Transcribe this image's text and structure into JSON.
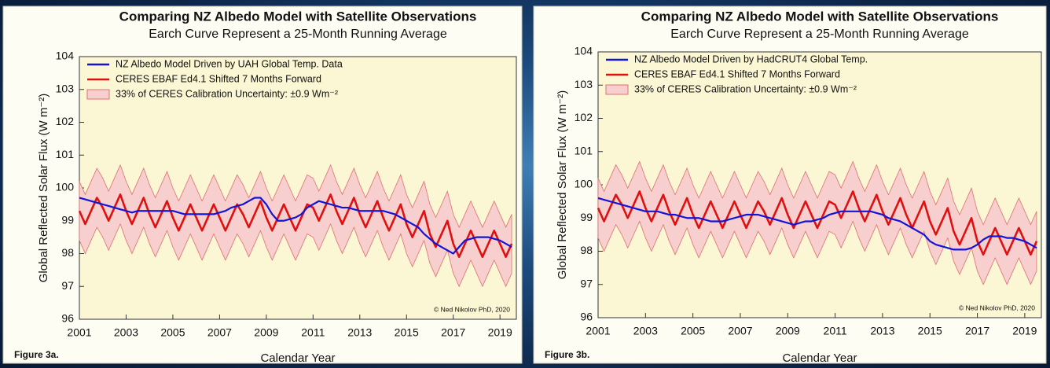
{
  "chart_data": [
    {
      "type": "line",
      "title": "Comparing NZ Albedo Model with Satellite Observations",
      "subtitle": "Earch Curve Represent a 25-Month Running Average",
      "x_label": "Calendar Year",
      "y_label": "Global Reflected Solar Flux (W m⁻²)",
      "figure_label": "Figure 3a.",
      "credit": "© Ned Nikolov PhD, 2020",
      "xlim": [
        2001,
        2019.7
      ],
      "xticks": [
        2001,
        2003,
        2005,
        2007,
        2009,
        2011,
        2013,
        2015,
        2017,
        2019
      ],
      "ylim": [
        96,
        104
      ],
      "yticks": [
        96,
        97,
        98,
        99,
        100,
        101,
        102,
        103,
        104
      ],
      "x": [
        2001,
        2001.25,
        2001.5,
        2001.75,
        2002,
        2002.25,
        2002.5,
        2002.75,
        2003,
        2003.25,
        2003.5,
        2003.75,
        2004,
        2004.25,
        2004.5,
        2004.75,
        2005,
        2005.25,
        2005.5,
        2005.75,
        2006,
        2006.25,
        2006.5,
        2006.75,
        2007,
        2007.25,
        2007.5,
        2007.75,
        2008,
        2008.25,
        2008.5,
        2008.75,
        2009,
        2009.25,
        2009.5,
        2009.75,
        2010,
        2010.25,
        2010.5,
        2010.75,
        2011,
        2011.25,
        2011.5,
        2011.75,
        2012,
        2012.25,
        2012.5,
        2012.75,
        2013,
        2013.25,
        2013.5,
        2013.75,
        2014,
        2014.25,
        2014.5,
        2014.75,
        2015,
        2015.25,
        2015.5,
        2015.75,
        2016,
        2016.25,
        2016.5,
        2016.75,
        2017,
        2017.25,
        2017.5,
        2017.75,
        2018,
        2018.25,
        2018.5,
        2018.75,
        2019,
        2019.25,
        2019.5
      ],
      "series": [
        {
          "name": "NZ Albedo Model Driven by UAH Global Temp. Data",
          "color": "#1414d6",
          "values": [
            99.7,
            99.65,
            99.6,
            99.55,
            99.5,
            99.45,
            99.4,
            99.35,
            99.3,
            99.25,
            99.3,
            99.3,
            99.3,
            99.3,
            99.3,
            99.3,
            99.3,
            99.25,
            99.2,
            99.2,
            99.2,
            99.2,
            99.2,
            99.2,
            99.25,
            99.3,
            99.4,
            99.45,
            99.5,
            99.6,
            99.7,
            99.7,
            99.5,
            99.2,
            99.0,
            99.0,
            99.05,
            99.1,
            99.2,
            99.4,
            99.5,
            99.6,
            99.55,
            99.5,
            99.45,
            99.4,
            99.4,
            99.35,
            99.3,
            99.3,
            99.3,
            99.3,
            99.3,
            99.25,
            99.2,
            99.1,
            99.0,
            98.9,
            98.8,
            98.6,
            98.45,
            98.3,
            98.2,
            98.1,
            98.0,
            98.2,
            98.4,
            98.45,
            98.5,
            98.5,
            98.5,
            98.45,
            98.4,
            98.3,
            98.2
          ]
        },
        {
          "name": "CERES EBAF Ed4.1 Shifted 7 Months Forward",
          "color": "#e01010",
          "values": [
            99.3,
            98.9,
            99.3,
            99.7,
            99.4,
            99.0,
            99.4,
            99.8,
            99.3,
            98.9,
            99.3,
            99.7,
            99.2,
            98.8,
            99.2,
            99.6,
            99.1,
            98.7,
            99.1,
            99.5,
            99.1,
            98.7,
            99.1,
            99.5,
            99.1,
            98.7,
            99.1,
            99.5,
            99.2,
            98.8,
            99.2,
            99.6,
            99.1,
            98.7,
            99.1,
            99.5,
            99.1,
            98.7,
            99.1,
            99.5,
            99.4,
            99.0,
            99.4,
            99.8,
            99.3,
            98.9,
            99.3,
            99.7,
            99.2,
            98.8,
            99.2,
            99.6,
            99.1,
            98.7,
            99.1,
            99.5,
            98.9,
            98.5,
            98.9,
            99.3,
            98.6,
            98.2,
            98.6,
            99.0,
            98.3,
            97.9,
            98.3,
            98.7,
            98.3,
            97.9,
            98.3,
            98.7,
            98.3,
            97.9,
            98.3
          ]
        }
      ],
      "band": {
        "name": "33% of CERES Calibration Uncertainty: ±0.9 Wm⁻²",
        "color": "#f7cfcf",
        "edge": "#e07070",
        "series": 1,
        "half_width": 0.9
      }
    },
    {
      "type": "line",
      "title": "Comparing NZ Albedo Model with Satellite Observations",
      "subtitle": "Earch Curve Represent a 25-Month Running Average",
      "x_label": "Calendar Year",
      "y_label": "Global Reflected Solar Flux (W m⁻²)",
      "figure_label": "Figure 3b.",
      "credit": "© Ned Nikolov PhD, 2020",
      "xlim": [
        2001,
        2019.7
      ],
      "xticks": [
        2001,
        2003,
        2005,
        2007,
        2009,
        2011,
        2013,
        2015,
        2017,
        2019
      ],
      "ylim": [
        96,
        104
      ],
      "yticks": [
        96,
        97,
        98,
        99,
        100,
        101,
        102,
        103,
        104
      ],
      "x": [
        2001,
        2001.25,
        2001.5,
        2001.75,
        2002,
        2002.25,
        2002.5,
        2002.75,
        2003,
        2003.25,
        2003.5,
        2003.75,
        2004,
        2004.25,
        2004.5,
        2004.75,
        2005,
        2005.25,
        2005.5,
        2005.75,
        2006,
        2006.25,
        2006.5,
        2006.75,
        2007,
        2007.25,
        2007.5,
        2007.75,
        2008,
        2008.25,
        2008.5,
        2008.75,
        2009,
        2009.25,
        2009.5,
        2009.75,
        2010,
        2010.25,
        2010.5,
        2010.75,
        2011,
        2011.25,
        2011.5,
        2011.75,
        2012,
        2012.25,
        2012.5,
        2012.75,
        2013,
        2013.25,
        2013.5,
        2013.75,
        2014,
        2014.25,
        2014.5,
        2014.75,
        2015,
        2015.25,
        2015.5,
        2015.75,
        2016,
        2016.25,
        2016.5,
        2016.75,
        2017,
        2017.25,
        2017.5,
        2017.75,
        2018,
        2018.25,
        2018.5,
        2018.75,
        2019,
        2019.25,
        2019.5
      ],
      "series": [
        {
          "name": "NZ Albedo Model Driven by HadCRUT4 Global Temp.",
          "color": "#1414d6",
          "values": [
            99.6,
            99.55,
            99.5,
            99.45,
            99.4,
            99.35,
            99.3,
            99.25,
            99.2,
            99.2,
            99.2,
            99.15,
            99.1,
            99.1,
            99.05,
            99.0,
            99.0,
            99.0,
            98.95,
            98.9,
            98.9,
            98.9,
            98.95,
            99.0,
            99.05,
            99.1,
            99.1,
            99.1,
            99.05,
            99.0,
            98.95,
            98.9,
            98.85,
            98.8,
            98.85,
            98.9,
            98.9,
            98.95,
            99.0,
            99.1,
            99.15,
            99.2,
            99.2,
            99.2,
            99.2,
            99.2,
            99.2,
            99.15,
            99.1,
            99.0,
            98.95,
            98.9,
            98.8,
            98.7,
            98.6,
            98.5,
            98.3,
            98.2,
            98.15,
            98.1,
            98.05,
            98.05,
            98.05,
            98.1,
            98.2,
            98.35,
            98.45,
            98.45,
            98.45,
            98.4,
            98.4,
            98.35,
            98.3,
            98.2,
            98.1
          ]
        },
        {
          "name": "CERES EBAF Ed4.1 Shifted 7 Months Forward",
          "color": "#e01010",
          "values": [
            99.3,
            98.9,
            99.3,
            99.7,
            99.4,
            99.0,
            99.4,
            99.8,
            99.3,
            98.9,
            99.3,
            99.7,
            99.2,
            98.8,
            99.2,
            99.6,
            99.1,
            98.7,
            99.1,
            99.5,
            99.1,
            98.7,
            99.1,
            99.5,
            99.1,
            98.7,
            99.1,
            99.5,
            99.2,
            98.8,
            99.2,
            99.6,
            99.1,
            98.7,
            99.1,
            99.5,
            99.1,
            98.7,
            99.1,
            99.5,
            99.4,
            99.0,
            99.4,
            99.8,
            99.3,
            98.9,
            99.3,
            99.7,
            99.2,
            98.8,
            99.2,
            99.6,
            99.1,
            98.7,
            99.1,
            99.5,
            98.9,
            98.5,
            98.9,
            99.3,
            98.6,
            98.2,
            98.6,
            99.0,
            98.3,
            97.9,
            98.3,
            98.7,
            98.3,
            97.9,
            98.3,
            98.7,
            98.3,
            97.9,
            98.3
          ]
        }
      ],
      "band": {
        "name": "33% of CERES Calibration Uncertainty: ±0.9 Wm⁻²",
        "color": "#f7cfcf",
        "edge": "#e07070",
        "series": 1,
        "half_width": 0.9
      }
    }
  ]
}
